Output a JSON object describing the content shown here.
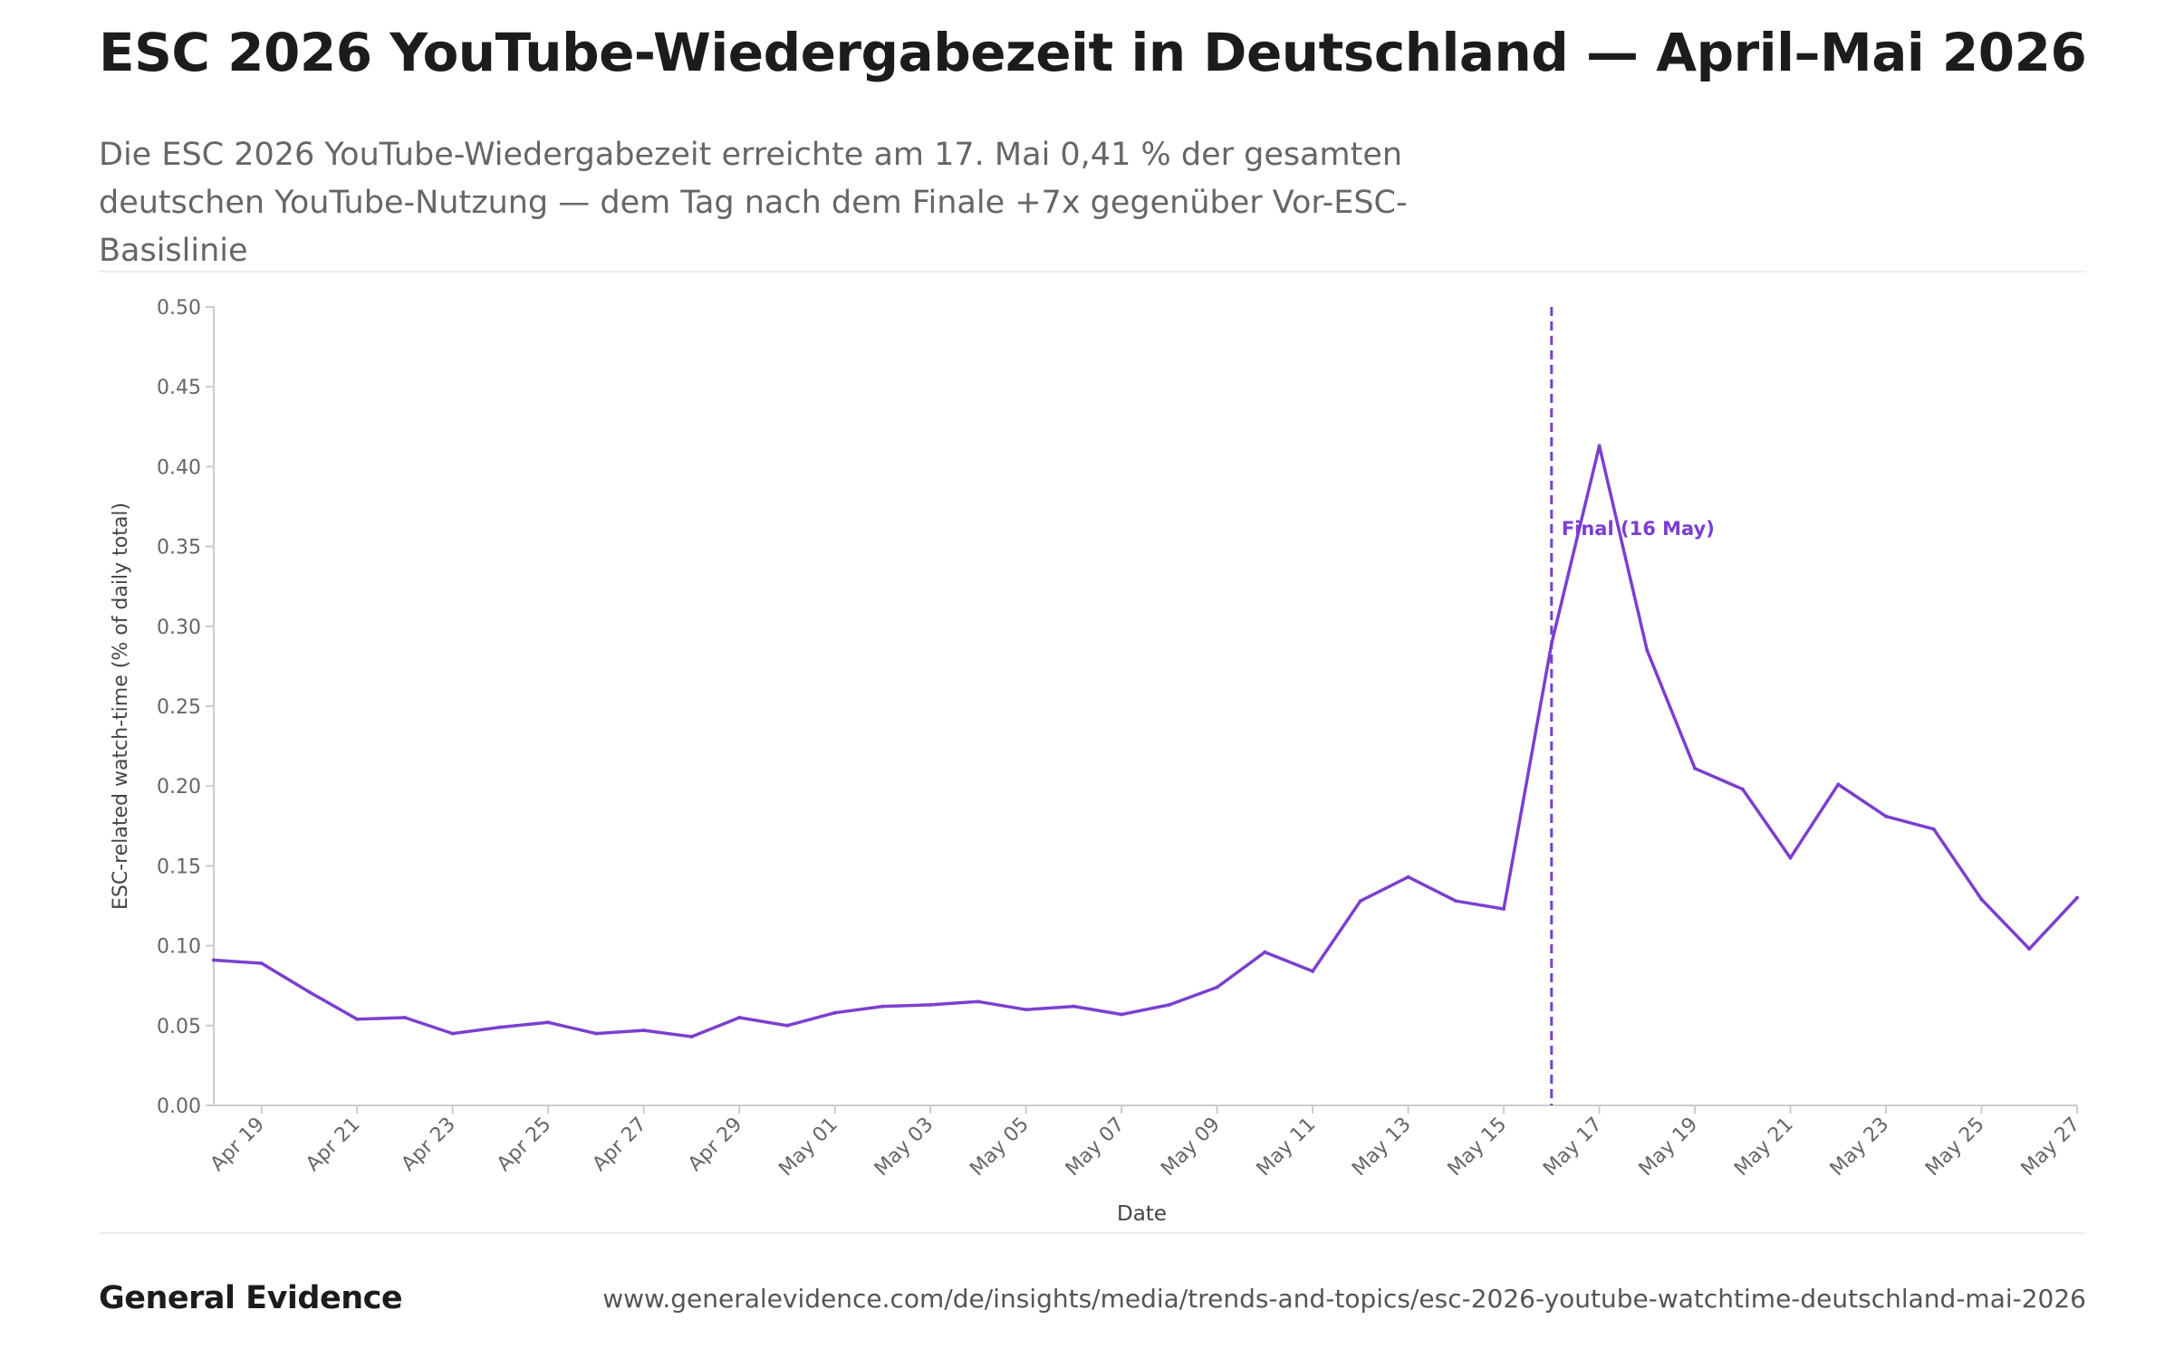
{
  "header": {
    "title": "ESC 2026 YouTube-Wiedergabezeit in Deutschland — April–Mai 2026",
    "subtitle": "Die ESC 2026 YouTube-Wiedergabezeit erreichte am 17. Mai 0,41 % der gesamten deutschen YouTube-Nutzung — dem Tag nach dem Finale +7x gegenüber Vor-ESC-Basislinie"
  },
  "footer": {
    "brand": "General Evidence",
    "url": "www.generalevidence.com/de/insights/media/trends-and-topics/esc-2026-youtube-watchtime-deutschland-mai-2026"
  },
  "colors": {
    "series": "#7b3fd0",
    "axis": "#cccccc",
    "tick_text": "#666666",
    "axis_label": "#444444"
  },
  "chart_data": {
    "type": "line",
    "xlabel": "Date",
    "ylabel": "ESC-related watch-time (% of daily total)",
    "ylim": [
      0,
      0.5
    ],
    "yticks": [
      "0.00",
      "0.05",
      "0.10",
      "0.15",
      "0.20",
      "0.25",
      "0.30",
      "0.35",
      "0.40",
      "0.45",
      "0.50"
    ],
    "xrange": [
      "2026-04-18",
      "2026-05-27"
    ],
    "xticks": [
      {
        "date": "2026-04-19",
        "label": "Apr 19"
      },
      {
        "date": "2026-04-21",
        "label": "Apr 21"
      },
      {
        "date": "2026-04-23",
        "label": "Apr 23"
      },
      {
        "date": "2026-04-25",
        "label": "Apr 25"
      },
      {
        "date": "2026-04-27",
        "label": "Apr 27"
      },
      {
        "date": "2026-04-29",
        "label": "Apr 29"
      },
      {
        "date": "2026-05-01",
        "label": "May 01"
      },
      {
        "date": "2026-05-03",
        "label": "May 03"
      },
      {
        "date": "2026-05-05",
        "label": "May 05"
      },
      {
        "date": "2026-05-07",
        "label": "May 07"
      },
      {
        "date": "2026-05-09",
        "label": "May 09"
      },
      {
        "date": "2026-05-11",
        "label": "May 11"
      },
      {
        "date": "2026-05-13",
        "label": "May 13"
      },
      {
        "date": "2026-05-15",
        "label": "May 15"
      },
      {
        "date": "2026-05-17",
        "label": "May 17"
      },
      {
        "date": "2026-05-19",
        "label": "May 19"
      },
      {
        "date": "2026-05-21",
        "label": "May 21"
      },
      {
        "date": "2026-05-23",
        "label": "May 23"
      },
      {
        "date": "2026-05-25",
        "label": "May 25"
      },
      {
        "date": "2026-05-27",
        "label": "May 27"
      }
    ],
    "series": [
      {
        "color": "#7b3fd0",
        "points": [
          {
            "x": "2026-04-18",
            "y": 0.091
          },
          {
            "x": "2026-04-19",
            "y": 0.089
          },
          {
            "x": "2026-04-20",
            "y": 0.071
          },
          {
            "x": "2026-04-21",
            "y": 0.054
          },
          {
            "x": "2026-04-22",
            "y": 0.055
          },
          {
            "x": "2026-04-23",
            "y": 0.045
          },
          {
            "x": "2026-04-24",
            "y": 0.049
          },
          {
            "x": "2026-04-25",
            "y": 0.052
          },
          {
            "x": "2026-04-26",
            "y": 0.045
          },
          {
            "x": "2026-04-27",
            "y": 0.047
          },
          {
            "x": "2026-04-28",
            "y": 0.043
          },
          {
            "x": "2026-04-29",
            "y": 0.055
          },
          {
            "x": "2026-04-30",
            "y": 0.05
          },
          {
            "x": "2026-05-01",
            "y": 0.058
          },
          {
            "x": "2026-05-02",
            "y": 0.062
          },
          {
            "x": "2026-05-03",
            "y": 0.063
          },
          {
            "x": "2026-05-04",
            "y": 0.065
          },
          {
            "x": "2026-05-05",
            "y": 0.06
          },
          {
            "x": "2026-05-06",
            "y": 0.062
          },
          {
            "x": "2026-05-07",
            "y": 0.057
          },
          {
            "x": "2026-05-08",
            "y": 0.063
          },
          {
            "x": "2026-05-09",
            "y": 0.074
          },
          {
            "x": "2026-05-10",
            "y": 0.096
          },
          {
            "x": "2026-05-11",
            "y": 0.084
          },
          {
            "x": "2026-05-12",
            "y": 0.128
          },
          {
            "x": "2026-05-13",
            "y": 0.143
          },
          {
            "x": "2026-05-14",
            "y": 0.128
          },
          {
            "x": "2026-05-15",
            "y": 0.123
          },
          {
            "x": "2026-05-16",
            "y": 0.289
          },
          {
            "x": "2026-05-17",
            "y": 0.413
          },
          {
            "x": "2026-05-18",
            "y": 0.285
          },
          {
            "x": "2026-05-19",
            "y": 0.211
          },
          {
            "x": "2026-05-20",
            "y": 0.198
          },
          {
            "x": "2026-05-21",
            "y": 0.155
          },
          {
            "x": "2026-05-22",
            "y": 0.201
          },
          {
            "x": "2026-05-23",
            "y": 0.181
          },
          {
            "x": "2026-05-24",
            "y": 0.173
          },
          {
            "x": "2026-05-25",
            "y": 0.129
          },
          {
            "x": "2026-05-26",
            "y": 0.098
          },
          {
            "x": "2026-05-27",
            "y": 0.13
          }
        ]
      }
    ],
    "annotations": [
      {
        "type": "vline",
        "x": "2026-05-16",
        "label": "Final (16 May)",
        "style": "dashed",
        "color": "#7b3fd0"
      }
    ],
    "grid": false
  }
}
